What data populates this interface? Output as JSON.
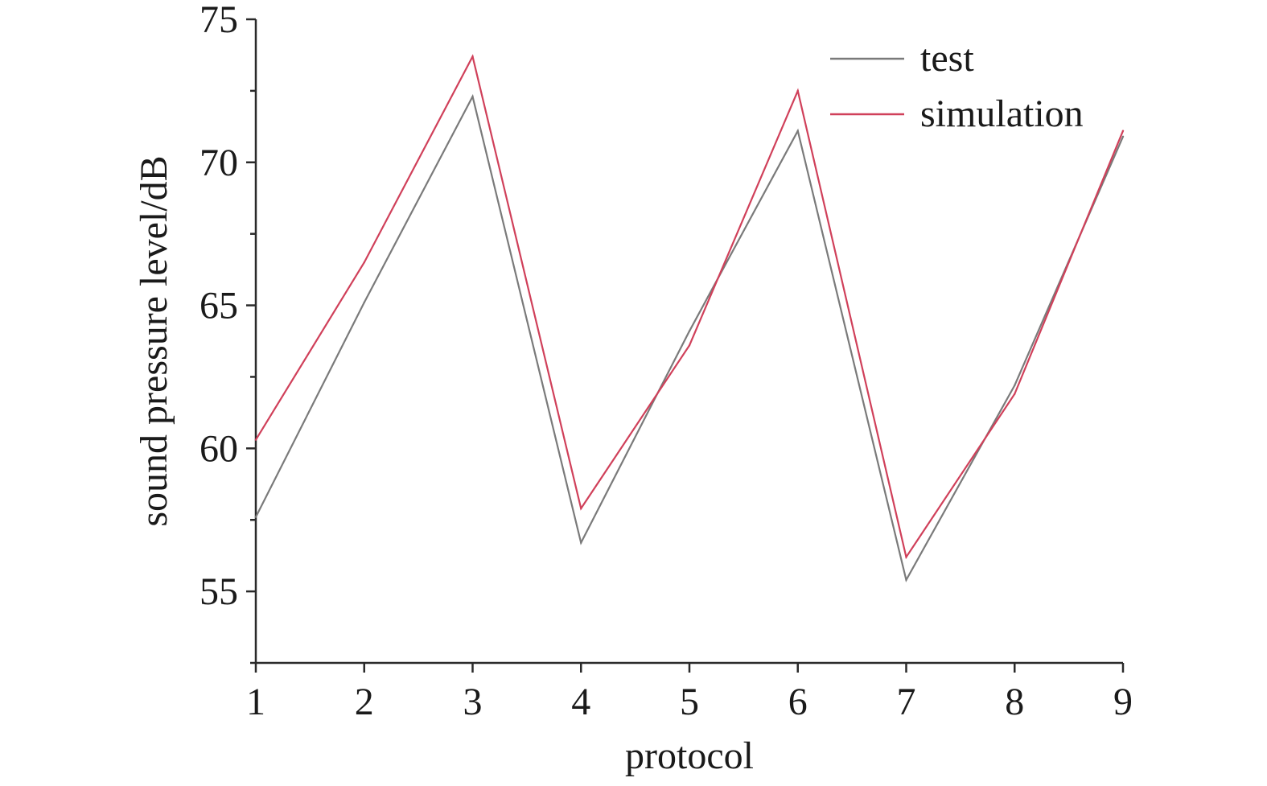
{
  "chart_data": {
    "type": "line",
    "x": [
      1,
      2,
      3,
      4,
      5,
      6,
      7,
      8,
      9
    ],
    "xticks": [
      "1",
      "2",
      "3",
      "4",
      "5",
      "6",
      "7",
      "8",
      "9"
    ],
    "yticks": [
      "55",
      "60",
      "65",
      "70",
      "75"
    ],
    "ytick_values": [
      55,
      60,
      65,
      70,
      75
    ],
    "xlim": [
      1,
      9
    ],
    "ylim": [
      52.5,
      75
    ],
    "xlabel": "protocol",
    "ylabel": "sound pressure level/dB",
    "legend_position": "top-right",
    "grid": false,
    "series": [
      {
        "name": "test",
        "color": "#7a7a7a",
        "values": [
          57.6,
          65.1,
          72.3,
          56.7,
          64.1,
          71.1,
          55.4,
          62.2,
          70.9
        ]
      },
      {
        "name": "simulation",
        "color": "#d0405a",
        "values": [
          60.3,
          66.5,
          73.7,
          57.9,
          63.6,
          72.5,
          56.2,
          61.9,
          71.1
        ]
      }
    ]
  }
}
